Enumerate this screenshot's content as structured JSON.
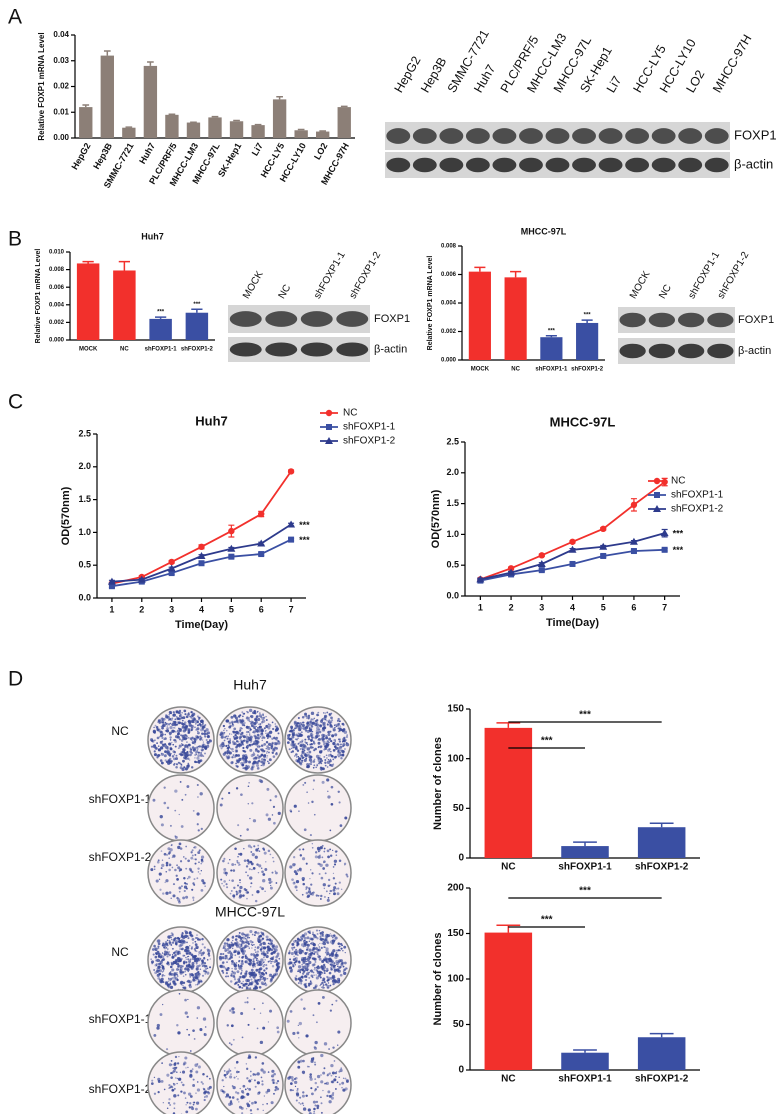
{
  "panel_labels": [
    "A",
    "B",
    "C",
    "D"
  ],
  "chart_data": [
    {
      "type": "bar",
      "ylabel": "Relative FOXP1 mRNA Level",
      "categories": [
        "HepG2",
        "Hep3B",
        "SMMC-7721",
        "Huh7",
        "PLC/PRF/5",
        "MHCC-LM3",
        "MHCC-97L",
        "SK-Hep1",
        "Li7",
        "HCC-LY5",
        "HCC-LY10",
        "LO2",
        "MHCC-97H"
      ],
      "values": [
        0.012,
        0.032,
        0.004,
        0.028,
        0.009,
        0.006,
        0.008,
        0.0065,
        0.005,
        0.015,
        0.003,
        0.0025,
        0.012
      ],
      "errors": [
        0.0008,
        0.0018,
        0.0002,
        0.0015,
        0.0002,
        0.0001,
        0.0003,
        0.0003,
        0.0002,
        0.001,
        0.0003,
        0.0002,
        0.0003
      ],
      "color": "#8c7f77",
      "ylim": [
        0,
        0.04
      ],
      "yticks": [
        {
          "value": 0,
          "label": "0.00"
        },
        0.01,
        0.02,
        0.03,
        0.04
      ]
    },
    {
      "type": "bar",
      "title": "Huh7",
      "ylabel": "Relative FOXP1 mRNA Level",
      "categories": [
        "MOCK",
        "NC",
        "shFOXP1-1",
        "shFOXP1-2"
      ],
      "values": [
        0.0087,
        0.0079,
        0.0024,
        0.0031
      ],
      "errors": [
        0.0002,
        0.001,
        0.0002,
        0.0004
      ],
      "colors": [
        "#f2302c",
        "#f2302c",
        "#3a4fa3",
        "#3a4fa3"
      ],
      "significance": [
        null,
        null,
        "***",
        "***"
      ],
      "ylim": [
        0,
        0.01
      ],
      "yticks": [
        {
          "value": 0,
          "label": "0.000"
        },
        {
          "value": 0.002,
          "label": "0.002"
        },
        {
          "value": 0.004,
          "label": "0.004"
        },
        {
          "value": 0.006,
          "label": "0.006"
        },
        {
          "value": 0.008,
          "label": "0.008"
        },
        {
          "value": 0.01,
          "label": "0.010"
        }
      ]
    },
    {
      "type": "bar",
      "title": "MHCC-97L",
      "ylabel": "Relative FOXP1 mRNA Level",
      "categories": [
        "MOCK",
        "NC",
        "shFOXP1-1",
        "shFOXP1-2"
      ],
      "values": [
        0.0062,
        0.0058,
        0.0016,
        0.0026
      ],
      "errors": [
        0.0003,
        0.0004,
        0.0001,
        0.0002
      ],
      "colors": [
        "#f2302c",
        "#f2302c",
        "#3a4fa3",
        "#3a4fa3"
      ],
      "significance": [
        null,
        null,
        "***",
        "***"
      ],
      "ylim": [
        0,
        0.008
      ],
      "yticks": [
        {
          "value": 0,
          "label": "0.000"
        },
        {
          "value": 0.002,
          "label": "0.002"
        },
        {
          "value": 0.004,
          "label": "0.004"
        },
        {
          "value": 0.006,
          "label": "0.006"
        },
        {
          "value": 0.008,
          "label": "0.008"
        }
      ]
    },
    {
      "type": "line",
      "title": "Huh7",
      "xlabel": "Time(Day)",
      "ylabel": "OD(570nm)",
      "x": [
        1,
        2,
        3,
        4,
        5,
        6,
        7
      ],
      "xlim": [
        0.5,
        7.5
      ],
      "xticks": [
        1,
        2,
        3,
        4,
        5,
        6,
        7
      ],
      "ylim": [
        0,
        2.5
      ],
      "yticks": [
        {
          "value": 0,
          "label": "0.0"
        },
        0.5,
        {
          "value": 1,
          "label": "1.0"
        },
        1.5,
        {
          "value": 2,
          "label": "2.0"
        },
        2.5
      ],
      "series": [
        {
          "name": "NC",
          "color": "#f2302c",
          "marker": "circle",
          "values": [
            0.22,
            0.32,
            0.55,
            0.78,
            1.02,
            1.28,
            1.93
          ],
          "errors": [
            0.02,
            0.02,
            0.02,
            0.03,
            0.09,
            0.04,
            0.02
          ]
        },
        {
          "name": "shFOXP1-1",
          "color": "#3a4fa3",
          "marker": "square",
          "values": [
            0.18,
            0.25,
            0.38,
            0.53,
            0.63,
            0.67,
            0.89
          ],
          "errors": [
            0.02,
            0.02,
            0.02,
            0.02,
            0.02,
            0.02,
            0.02
          ],
          "end_label": "***"
        },
        {
          "name": "shFOXP1-2",
          "color": "#2d3a8c",
          "marker": "triangle",
          "values": [
            0.25,
            0.28,
            0.45,
            0.64,
            0.75,
            0.83,
            1.12
          ],
          "errors": [
            0.02,
            0.02,
            0.02,
            0.02,
            0.02,
            0.02,
            0.02
          ],
          "end_label": "***"
        }
      ]
    },
    {
      "type": "line",
      "title": "MHCC-97L",
      "xlabel": "Time(Day)",
      "ylabel": "OD(570nm)",
      "x": [
        1,
        2,
        3,
        4,
        5,
        6,
        7
      ],
      "xlim": [
        0.5,
        7.5
      ],
      "xticks": [
        1,
        2,
        3,
        4,
        5,
        6,
        7
      ],
      "ylim": [
        0,
        2.5
      ],
      "yticks": [
        {
          "value": 0,
          "label": "0.0"
        },
        0.5,
        {
          "value": 1,
          "label": "1.0"
        },
        1.5,
        {
          "value": 2,
          "label": "2.0"
        },
        2.5
      ],
      "series": [
        {
          "name": "NC",
          "color": "#f2302c",
          "marker": "circle",
          "values": [
            0.27,
            0.45,
            0.66,
            0.88,
            1.09,
            1.48,
            1.85
          ],
          "errors": [
            0.02,
            0.02,
            0.02,
            0.02,
            0.02,
            0.1,
            0.06
          ]
        },
        {
          "name": "shFOXP1-1",
          "color": "#3a4fa3",
          "marker": "square",
          "values": [
            0.25,
            0.35,
            0.42,
            0.52,
            0.65,
            0.73,
            0.75
          ],
          "errors": [
            0.02,
            0.02,
            0.02,
            0.02,
            0.02,
            0.02,
            0.02
          ],
          "end_label": "***"
        },
        {
          "name": "shFOXP1-2",
          "color": "#2d3a8c",
          "marker": "triangle",
          "values": [
            0.27,
            0.38,
            0.52,
            0.75,
            0.8,
            0.88,
            1.02
          ],
          "errors": [
            0.02,
            0.02,
            0.02,
            0.02,
            0.02,
            0.02,
            0.06
          ],
          "end_label": "***"
        }
      ]
    },
    {
      "type": "bar",
      "ylabel": "Number of clones",
      "categories": [
        "NC",
        "shFOXP1-1",
        "shFOXP1-2"
      ],
      "values": [
        131,
        12,
        31
      ],
      "errors": [
        5,
        4,
        4
      ],
      "colors": [
        "#f2302c",
        "#3a4fa3",
        "#3a4fa3"
      ],
      "ylim": [
        0,
        150
      ],
      "yticks": [
        0,
        50,
        100,
        150
      ],
      "comparisons": [
        {
          "from": "NC",
          "to": "shFOXP1-1",
          "label": "***"
        },
        {
          "from": "NC",
          "to": "shFOXP1-2",
          "label": "***"
        }
      ]
    },
    {
      "type": "bar",
      "ylabel": "Number of clones",
      "categories": [
        "NC",
        "shFOXP1-1",
        "shFOXP1-2"
      ],
      "values": [
        151,
        19,
        36
      ],
      "errors": [
        8,
        3,
        4
      ],
      "colors": [
        "#f2302c",
        "#3a4fa3",
        "#3a4fa3"
      ],
      "ylim": [
        0,
        200
      ],
      "yticks": [
        0,
        50,
        100,
        150,
        200
      ],
      "comparisons": [
        {
          "from": "NC",
          "to": "shFOXP1-1",
          "label": "***"
        },
        {
          "from": "NC",
          "to": "shFOXP1-2",
          "label": "***"
        }
      ]
    }
  ],
  "blots": [
    {
      "lanes": [
        "HepG2",
        "Hep3B",
        "SMMC-7721",
        "Huh7",
        "PLC/PRF/5",
        "MHCC-LM3",
        "MHCC-97L",
        "SK-Hep1",
        "Li7",
        "HCC-LY5",
        "HCC-LY10",
        "LO2",
        "MHCC-97H"
      ],
      "bands": [
        "FOXP1",
        "β-actin"
      ]
    },
    {
      "lanes": [
        "MOCK",
        "NC",
        "shFOXP1-1",
        "shFOXP1-2"
      ],
      "bands": [
        "FOXP1",
        "β-actin"
      ]
    },
    {
      "lanes": [
        "MOCK",
        "NC",
        "shFOXP1-1",
        "shFOXP1-2"
      ],
      "bands": [
        "FOXP1",
        "β-actin"
      ]
    }
  ],
  "colony_plates": [
    {
      "title": "Huh7",
      "rows": [
        "NC",
        "shFOXP1-1",
        "shFOXP1-2"
      ]
    },
    {
      "title": "MHCC-97L",
      "rows": [
        "NC",
        "shFOXP1-1",
        "shFOXP1-2"
      ]
    }
  ]
}
